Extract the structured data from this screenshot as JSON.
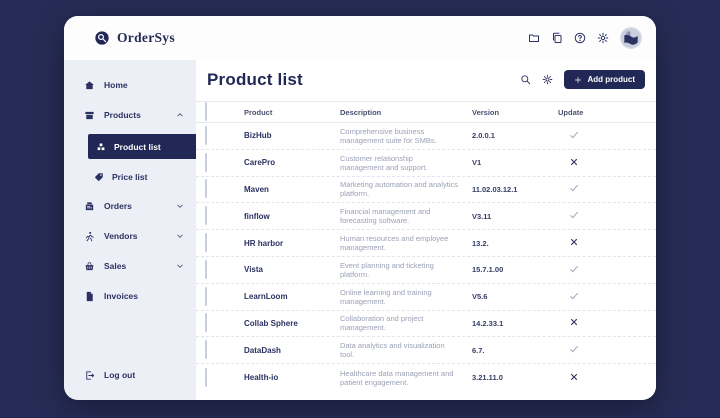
{
  "app": {
    "name": "OrderSys",
    "logo_icon": "logo-magnifier"
  },
  "topbar": {
    "icons": [
      {
        "name": "folder-icon",
        "glyph": "folder"
      },
      {
        "name": "copy-icon",
        "glyph": "copy"
      },
      {
        "name": "help-icon",
        "glyph": "help"
      },
      {
        "name": "settings-icon",
        "glyph": "gear"
      }
    ],
    "avatar": "globe-avatar"
  },
  "sidebar": {
    "items": [
      {
        "label": "Home",
        "icon": "home"
      },
      {
        "label": "Products",
        "icon": "products",
        "state": "expanded"
      },
      {
        "label": "Orders",
        "icon": "orders",
        "state": "collapsed"
      },
      {
        "label": "Vendors",
        "icon": "vendors",
        "state": "collapsed"
      },
      {
        "label": "Sales",
        "icon": "sales",
        "state": "collapsed"
      },
      {
        "label": "Invoices",
        "icon": "invoices"
      }
    ],
    "products_children": [
      {
        "label": "Product list",
        "icon": "cubes",
        "active": true
      },
      {
        "label": "Price list",
        "icon": "tag",
        "active": false
      }
    ],
    "logout_label": "Log out",
    "logout_icon": "logout"
  },
  "main": {
    "title": "Product list",
    "actions": {
      "search_icon": "search",
      "settings_icon": "gear",
      "add_button_label": "Add product"
    },
    "table": {
      "columns": [
        "Product",
        "Description",
        "Version",
        "Update"
      ],
      "rows": [
        {
          "product": "BizHub",
          "description": "Comprehensive business management suite for SMBs.",
          "version": "2.0.0.1",
          "update": "check"
        },
        {
          "product": "CarePro",
          "description": "Customer relationship management and support.",
          "version": "V1",
          "update": "cross"
        },
        {
          "product": "Maven",
          "description": "Marketing automation and analytics platform.",
          "version": "11.02.03.12.1",
          "update": "check"
        },
        {
          "product": "finflow",
          "description": "Financial management and forecasting software.",
          "version": "V3.11",
          "update": "check"
        },
        {
          "product": "HR harbor",
          "description": "Human resources and employee management.",
          "version": "13.2.",
          "update": "cross"
        },
        {
          "product": "Vista",
          "description": "Event planning and ticketing platform.",
          "version": "15.7.1.00",
          "update": "check"
        },
        {
          "product": "LearnLoom",
          "description": "Online learning and training management.",
          "version": "V5.6",
          "update": "check"
        },
        {
          "product": "Collab Sphere",
          "description": "Collaboration and project management.",
          "version": "14.2.33.1",
          "update": "cross"
        },
        {
          "product": "DataDash",
          "description": "Data analytics and visualization tool.",
          "version": "6.7.",
          "update": "check"
        },
        {
          "product": "Health-io",
          "description": "Healthcare data management and patient engagement.",
          "version": "3.21.11.0",
          "update": "cross"
        }
      ]
    }
  },
  "colors": {
    "page_background": "#262c55",
    "window_background": "#ffffff",
    "sidebar_background": "#edeff7",
    "accent_navy": "#222856",
    "muted_text": "#9ba0b6",
    "check_gray": "#a8adc2",
    "divider": "#e7e9f2"
  }
}
